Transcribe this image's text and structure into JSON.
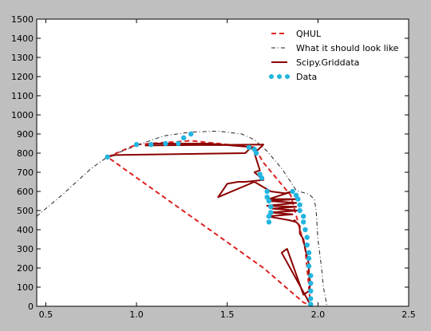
{
  "chart_data": {
    "type": "line",
    "title": "",
    "xlabel": "",
    "ylabel": "",
    "xlim": [
      0.45,
      2.5
    ],
    "ylim": [
      0,
      1500
    ],
    "grid": false,
    "legend_position": "top-right",
    "xticks": [
      {
        "value": 0.5,
        "label": "0.5"
      },
      {
        "value": 1.0,
        "label": "1.0"
      },
      {
        "value": 1.5,
        "label": "1.5"
      },
      {
        "value": 2.0,
        "label": "2.0"
      },
      {
        "value": 2.5,
        "label": "2.5"
      }
    ],
    "yticks": [
      {
        "value": 0,
        "label": "0"
      },
      {
        "value": 100,
        "label": "100"
      },
      {
        "value": 200,
        "label": "200"
      },
      {
        "value": 300,
        "label": "300"
      },
      {
        "value": 400,
        "label": "400"
      },
      {
        "value": 500,
        "label": "500"
      },
      {
        "value": 600,
        "label": "600"
      },
      {
        "value": 700,
        "label": "700"
      },
      {
        "value": 800,
        "label": "800"
      },
      {
        "value": 900,
        "label": "900"
      },
      {
        "value": 1000,
        "label": "1000"
      },
      {
        "value": 1100,
        "label": "1100"
      },
      {
        "value": 1200,
        "label": "1200"
      },
      {
        "value": 1300,
        "label": "1300"
      },
      {
        "value": 1400,
        "label": "1400"
      },
      {
        "value": 1500,
        "label": "1500"
      }
    ],
    "series": [
      {
        "name": "QHUL",
        "style": "dashed",
        "color": "#dd2222",
        "points": [
          [
            0.84,
            780
          ],
          [
            1.0,
            845
          ],
          [
            1.3,
            865
          ],
          [
            1.65,
            830
          ],
          [
            1.7,
            750
          ],
          [
            1.85,
            580
          ],
          [
            1.93,
            300
          ],
          [
            1.95,
            100
          ],
          [
            1.96,
            5
          ],
          [
            1.92,
            20
          ],
          [
            1.7,
            200
          ],
          [
            0.84,
            780
          ]
        ]
      },
      {
        "name": "What it should look like",
        "style": "dashdot",
        "color": "#222222",
        "points": [
          [
            0.45,
            470
          ],
          [
            0.6,
            590
          ],
          [
            0.75,
            720
          ],
          [
            0.84,
            780
          ],
          [
            1.0,
            840
          ],
          [
            1.15,
            890
          ],
          [
            1.3,
            910
          ],
          [
            1.45,
            915
          ],
          [
            1.58,
            900
          ],
          [
            1.65,
            870
          ],
          [
            1.72,
            810
          ],
          [
            1.8,
            720
          ],
          [
            1.85,
            650
          ],
          [
            1.88,
            605
          ],
          [
            1.95,
            585
          ],
          [
            1.98,
            560
          ],
          [
            1.99,
            500
          ],
          [
            2.0,
            350
          ],
          [
            2.02,
            200
          ],
          [
            2.03,
            100
          ],
          [
            2.05,
            0
          ]
        ]
      },
      {
        "name": "Scipy.Griddata",
        "style": "solid",
        "color": "#8b0000",
        "points": [
          [
            0.84,
            780
          ],
          [
            0.88,
            790
          ],
          [
            1.6,
            800
          ],
          [
            1.62,
            820
          ],
          [
            1.65,
            830
          ],
          [
            1.4,
            850
          ],
          [
            1.1,
            850
          ],
          [
            1.05,
            840
          ],
          [
            1.7,
            845
          ],
          [
            1.65,
            800
          ],
          [
            1.68,
            710
          ],
          [
            1.65,
            700
          ],
          [
            1.7,
            660
          ],
          [
            1.6,
            650
          ],
          [
            1.56,
            650
          ],
          [
            1.5,
            640
          ],
          [
            1.45,
            570
          ],
          [
            1.65,
            650
          ],
          [
            1.74,
            600
          ],
          [
            1.82,
            590
          ],
          [
            1.86,
            600
          ],
          [
            1.73,
            560
          ],
          [
            1.88,
            560
          ],
          [
            1.73,
            550
          ],
          [
            1.88,
            540
          ],
          [
            1.72,
            525
          ],
          [
            1.88,
            520
          ],
          [
            1.75,
            510
          ],
          [
            1.89,
            500
          ],
          [
            1.74,
            490
          ],
          [
            1.86,
            480
          ],
          [
            1.72,
            470
          ],
          [
            1.84,
            450
          ],
          [
            1.88,
            440
          ],
          [
            1.87,
            450
          ],
          [
            1.9,
            420
          ],
          [
            1.9,
            380
          ],
          [
            1.92,
            350
          ],
          [
            1.93,
            300
          ],
          [
            1.94,
            260
          ],
          [
            1.95,
            220
          ],
          [
            1.95,
            160
          ],
          [
            1.96,
            120
          ],
          [
            1.95,
            80
          ],
          [
            1.92,
            60
          ],
          [
            1.83,
            300
          ],
          [
            1.8,
            280
          ],
          [
            1.94,
            40
          ],
          [
            1.95,
            20
          ]
        ]
      },
      {
        "name": "Data",
        "style": "markers",
        "color": "#22b5e0",
        "points": [
          [
            0.84,
            780
          ],
          [
            1.0,
            845
          ],
          [
            1.08,
            845
          ],
          [
            1.16,
            850
          ],
          [
            1.23,
            850
          ],
          [
            1.26,
            880
          ],
          [
            1.3,
            900
          ],
          [
            1.62,
            830
          ],
          [
            1.65,
            820
          ],
          [
            1.66,
            800
          ],
          [
            1.68,
            690
          ],
          [
            1.69,
            670
          ],
          [
            1.72,
            600
          ],
          [
            1.72,
            570
          ],
          [
            1.73,
            550
          ],
          [
            1.74,
            520
          ],
          [
            1.74,
            490
          ],
          [
            1.73,
            470
          ],
          [
            1.73,
            440
          ],
          [
            1.86,
            600
          ],
          [
            1.88,
            580
          ],
          [
            1.89,
            560
          ],
          [
            1.9,
            530
          ],
          [
            1.9,
            500
          ],
          [
            1.92,
            470
          ],
          [
            1.92,
            440
          ],
          [
            1.93,
            400
          ],
          [
            1.94,
            360
          ],
          [
            1.94,
            320
          ],
          [
            1.95,
            280
          ],
          [
            1.95,
            250
          ],
          [
            1.95,
            210
          ],
          [
            1.96,
            160
          ],
          [
            1.96,
            120
          ],
          [
            1.96,
            80
          ],
          [
            1.96,
            40
          ],
          [
            1.96,
            10
          ]
        ]
      }
    ]
  }
}
